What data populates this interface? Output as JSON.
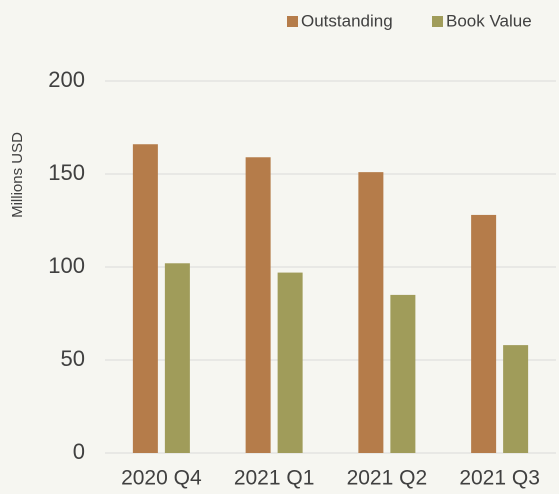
{
  "chart_data": {
    "type": "bar",
    "y_label": "Millions USD",
    "categories": [
      "2020 Q4",
      "2021 Q1",
      "2021 Q2",
      "2021 Q3"
    ],
    "series": [
      {
        "name": "Outstanding",
        "color": "#b57c4a",
        "values": [
          166,
          159,
          151,
          128
        ]
      },
      {
        "name": "Book Value",
        "color": "#a09c5a",
        "values": [
          102,
          97,
          85,
          58
        ]
      }
    ],
    "ylim": [
      0,
      200
    ],
    "yticks": [
      0,
      50,
      100,
      150,
      200
    ],
    "grid": true,
    "legend": "top-right"
  }
}
